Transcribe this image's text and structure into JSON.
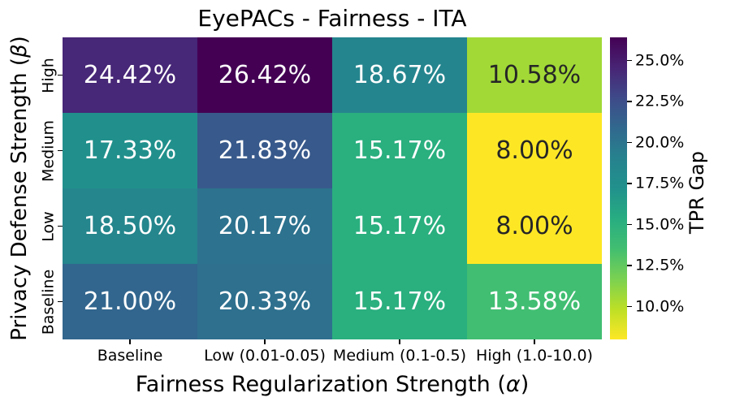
{
  "figure": {
    "background_color": "#ffffff",
    "text_color": "#000000"
  },
  "chart_data": {
    "type": "heatmap",
    "title": "EyePACs - Fairness - ITA",
    "xlabel": "Fairness Regularization Strength (α)",
    "ylabel": "Privacy Defense Strength (β)",
    "xlabel_parts": [
      "Fairness Regularization Strength (",
      "α",
      ")"
    ],
    "ylabel_parts": [
      "Privacy Defense Strength (",
      "β",
      ")"
    ],
    "x_categories": [
      "Baseline",
      "Low (0.01-0.05)",
      "Medium (0.1-0.5)",
      "High (1.0-10.0)"
    ],
    "y_categories": [
      "High",
      "Medium",
      "Low",
      "Baseline"
    ],
    "values": [
      [
        24.42,
        26.42,
        18.67,
        10.58
      ],
      [
        17.33,
        21.83,
        15.17,
        8.0
      ],
      [
        18.5,
        20.17,
        15.17,
        8.0
      ],
      [
        21.0,
        20.33,
        15.17,
        13.58
      ]
    ],
    "cell_labels": [
      [
        "24.42%",
        "26.42%",
        "18.67%",
        "10.58%"
      ],
      [
        "17.33%",
        "21.83%",
        "15.17%",
        "8.00%"
      ],
      [
        "18.50%",
        "20.17%",
        "15.17%",
        "8.00%"
      ],
      [
        "21.00%",
        "20.33%",
        "15.17%",
        "13.58%"
      ]
    ],
    "cell_colors": [
      [
        "#472777",
        "#440154",
        "#25858e",
        "#a2d937"
      ],
      [
        "#21908c",
        "#38598b",
        "#2aaf7f",
        "#fde725"
      ],
      [
        "#25868d",
        "#2d728e",
        "#2aaf7f",
        "#fde725"
      ],
      [
        "#32668e",
        "#2e708e",
        "#2aaf7f",
        "#41be72"
      ]
    ],
    "cell_text_colors": [
      [
        "#ffffff",
        "#ffffff",
        "#ffffff",
        "#262626"
      ],
      [
        "#ffffff",
        "#ffffff",
        "#ffffff",
        "#262626"
      ],
      [
        "#ffffff",
        "#ffffff",
        "#ffffff",
        "#262626"
      ],
      [
        "#ffffff",
        "#ffffff",
        "#ffffff",
        "#ffffff"
      ]
    ],
    "colormap": "viridis_r",
    "vmin": 8.0,
    "vmax": 26.42,
    "grid": false,
    "colorbar": {
      "label": "TPR Gap",
      "position": "right",
      "tick_labels": [
        "25.0%",
        "22.5%",
        "20.0%",
        "17.5%",
        "15.0%",
        "12.5%",
        "10.0%"
      ],
      "tick_values": [
        25.0,
        22.5,
        20.0,
        17.5,
        15.0,
        12.5,
        10.0
      ],
      "gradient": [
        "#440154",
        "#482475",
        "#3e4a89",
        "#31688e",
        "#26828e",
        "#21918c",
        "#27ad81",
        "#42be71",
        "#7ad151",
        "#bddf26",
        "#fde725"
      ]
    }
  }
}
